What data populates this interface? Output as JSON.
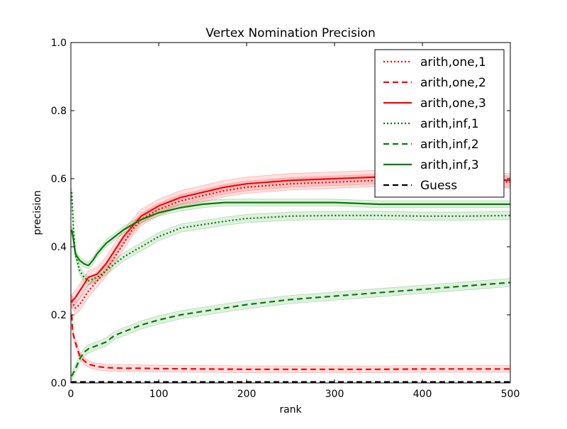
{
  "chart_data": {
    "type": "line",
    "title": "Vertex Nomination Precision",
    "xlabel": "rank",
    "ylabel": "precision",
    "xlim": [
      0,
      500
    ],
    "ylim": [
      0.0,
      1.0
    ],
    "xticks": [
      0,
      100,
      200,
      300,
      400,
      500
    ],
    "xtick_labels": [
      "0",
      "100",
      "200",
      "300",
      "400",
      "500"
    ],
    "yticks": [
      0.0,
      0.2,
      0.4,
      0.6,
      0.8,
      1.0
    ],
    "ytick_labels": [
      "0.0",
      "0.2",
      "0.4",
      "0.6",
      "0.8",
      "1.0"
    ],
    "grid": false,
    "legend_position": "top-right",
    "series": [
      {
        "name": "arith,one,1",
        "color": "#ff0000",
        "style": "dotted",
        "band": 0.018,
        "x": [
          1,
          5,
          10,
          20,
          30,
          40,
          50,
          60,
          70,
          80,
          100,
          125,
          150,
          175,
          200,
          250,
          300,
          350,
          400,
          450,
          500
        ],
        "y": [
          0.24,
          0.22,
          0.23,
          0.27,
          0.3,
          0.33,
          0.37,
          0.41,
          0.45,
          0.48,
          0.51,
          0.535,
          0.55,
          0.565,
          0.575,
          0.585,
          0.59,
          0.595,
          0.595,
          0.595,
          0.59
        ]
      },
      {
        "name": "arith,one,2",
        "color": "#ff0000",
        "style": "dashed",
        "band": 0.01,
        "x": [
          1,
          2,
          5,
          10,
          15,
          20,
          30,
          40,
          60,
          80,
          100,
          150,
          200,
          250,
          300,
          350,
          400,
          450,
          500
        ],
        "y": [
          0.2,
          0.15,
          0.12,
          0.08,
          0.065,
          0.055,
          0.048,
          0.045,
          0.043,
          0.043,
          0.042,
          0.041,
          0.04,
          0.04,
          0.04,
          0.04,
          0.041,
          0.041,
          0.041
        ]
      },
      {
        "name": "arith,one,3",
        "color": "#ff0000",
        "style": "solid",
        "band": 0.02,
        "x": [
          1,
          5,
          10,
          15,
          20,
          25,
          30,
          40,
          50,
          60,
          70,
          80,
          100,
          125,
          150,
          175,
          200,
          225,
          250,
          300,
          350,
          400,
          450,
          500
        ],
        "y": [
          0.24,
          0.25,
          0.27,
          0.29,
          0.31,
          0.315,
          0.32,
          0.35,
          0.39,
          0.43,
          0.46,
          0.49,
          0.52,
          0.545,
          0.56,
          0.575,
          0.585,
          0.59,
          0.595,
          0.6,
          0.605,
          0.605,
          0.6,
          0.595
        ]
      },
      {
        "name": "arith,inf,1",
        "color": "#008000",
        "style": "dotted",
        "band": 0.012,
        "x": [
          1,
          3,
          5,
          10,
          15,
          20,
          30,
          40,
          50,
          60,
          80,
          100,
          125,
          150,
          175,
          200,
          250,
          300,
          350,
          400,
          450,
          500
        ],
        "y": [
          0.56,
          0.45,
          0.38,
          0.33,
          0.31,
          0.3,
          0.31,
          0.33,
          0.35,
          0.37,
          0.4,
          0.43,
          0.455,
          0.465,
          0.475,
          0.483,
          0.49,
          0.492,
          0.492,
          0.49,
          0.49,
          0.492
        ]
      },
      {
        "name": "arith,inf,2",
        "color": "#008000",
        "style": "dashed",
        "band": 0.012,
        "x": [
          1,
          5,
          10,
          15,
          20,
          30,
          40,
          50,
          60,
          80,
          100,
          125,
          150,
          175,
          200,
          250,
          300,
          350,
          400,
          450,
          500
        ],
        "y": [
          0.02,
          0.04,
          0.07,
          0.09,
          0.1,
          0.11,
          0.12,
          0.14,
          0.15,
          0.17,
          0.185,
          0.2,
          0.21,
          0.22,
          0.23,
          0.245,
          0.255,
          0.265,
          0.275,
          0.285,
          0.295
        ]
      },
      {
        "name": "arith,inf,3",
        "color": "#008000",
        "style": "solid",
        "band": 0.01,
        "x": [
          1,
          3,
          5,
          10,
          15,
          20,
          25,
          30,
          40,
          50,
          60,
          70,
          80,
          100,
          125,
          150,
          175,
          200,
          250,
          300,
          350,
          400,
          450,
          500
        ],
        "y": [
          0.45,
          0.42,
          0.38,
          0.36,
          0.35,
          0.345,
          0.36,
          0.38,
          0.41,
          0.43,
          0.45,
          0.465,
          0.48,
          0.5,
          0.515,
          0.525,
          0.53,
          0.53,
          0.53,
          0.53,
          0.525,
          0.525,
          0.525,
          0.525
        ]
      },
      {
        "name": "Guess",
        "color": "#000000",
        "style": "dashed",
        "band": 0,
        "x": [
          0,
          500
        ],
        "y": [
          0.002,
          0.002
        ]
      }
    ]
  }
}
